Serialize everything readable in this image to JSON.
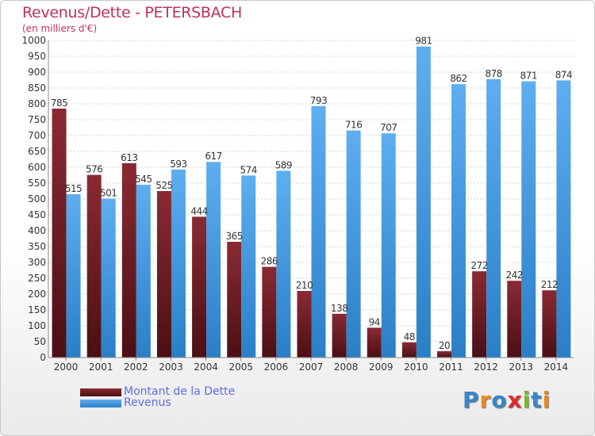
{
  "title": "Revenus/Dette - PETERSBACH",
  "subtitle": "(en milliers d'€)",
  "logo": {
    "text": "Proxiti",
    "letters": [
      "P",
      "r",
      "o",
      "x",
      "i",
      "t",
      "i"
    ],
    "colors": [
      "#3a86c8",
      "#e88a1a",
      "#3a86c8",
      "#e0282c",
      "#7ab830",
      "#3a86c8",
      "#e88a1a"
    ]
  },
  "chart_data": {
    "type": "bar",
    "title": "Revenus/Dette - PETERSBACH",
    "subtitle": "(en milliers d'€)",
    "categories": [
      "2000",
      "2001",
      "2002",
      "2003",
      "2004",
      "2005",
      "2006",
      "2007",
      "2008",
      "2009",
      "2010",
      "2011",
      "2012",
      "2013",
      "2014"
    ],
    "series": [
      {
        "name": "Montant de la Dette",
        "color": "#6e1e26",
        "values": [
          785,
          576,
          613,
          525,
          444,
          365,
          286,
          210,
          138,
          94,
          48,
          20,
          272,
          242,
          212
        ]
      },
      {
        "name": "Revenus",
        "color": "#3f98dc",
        "values": [
          515,
          501,
          545,
          593,
          617,
          574,
          589,
          793,
          716,
          707,
          981,
          862,
          878,
          871,
          874
        ]
      }
    ],
    "ylim": [
      0,
      1000
    ],
    "yticks": [
      0,
      50,
      100,
      150,
      200,
      250,
      300,
      350,
      400,
      450,
      500,
      550,
      600,
      650,
      700,
      750,
      800,
      850,
      900,
      950,
      1000
    ],
    "grid": true,
    "legend": "bottom-left"
  }
}
